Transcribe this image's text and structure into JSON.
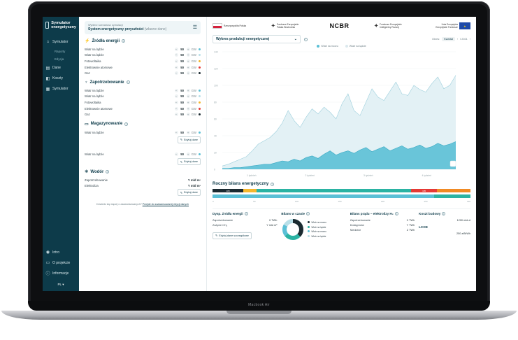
{
  "device": {
    "label": "Macbook Air"
  },
  "sidebar": {
    "logo": "Symulator energetyczny",
    "items": [
      {
        "label": "Symulator",
        "icon": "home-icon"
      },
      {
        "label": "Raporty",
        "icon": ""
      },
      {
        "label": "Edycja",
        "icon": ""
      },
      {
        "label": "Dane",
        "icon": "data-icon"
      },
      {
        "label": "Koszty",
        "icon": "wallet-icon"
      },
      {
        "label": "Symulator",
        "icon": "grid-icon"
      }
    ],
    "bottom": [
      {
        "label": "Intro",
        "icon": "play-icon"
      },
      {
        "label": "O projekcie",
        "icon": "card-icon"
      },
      {
        "label": "Informacje",
        "icon": "info-icon"
      }
    ],
    "lang": "PL ▾"
  },
  "scenario": {
    "caption": "Wybierz scenariusz symulacji",
    "value": "System energetyczny przyszłości",
    "suffix": "(własne dane)"
  },
  "sources": {
    "title": "Źródła energii",
    "rows": [
      {
        "label": "Wiatr na lądzie",
        "value": "50",
        "unit": "GW",
        "color": "#5bc0d6"
      },
      {
        "label": "Wiatr na lądzie",
        "value": "50",
        "unit": "GW",
        "color": "#b8dfe8"
      },
      {
        "label": "Fotowoltaika",
        "value": "50",
        "unit": "GW",
        "color": "#f5b82e"
      },
      {
        "label": "Elektrownie atomowe",
        "value": "50",
        "unit": "GW",
        "color": "#e53935"
      },
      {
        "label": "Gaz",
        "value": "50",
        "unit": "GW",
        "color": "#1b2b31"
      }
    ]
  },
  "demand": {
    "title": "Zapotrzebowanie",
    "rows": [
      {
        "label": "Wiatr na lądzie",
        "value": "50",
        "unit": "GW",
        "color": "#5bc0d6"
      },
      {
        "label": "Wiatr na lądzie",
        "value": "50",
        "unit": "GW",
        "color": "#b8dfe8"
      },
      {
        "label": "Fotowoltaika",
        "value": "50",
        "unit": "GW",
        "color": "#f5b82e"
      },
      {
        "label": "Elektrownie atomowe",
        "value": "50",
        "unit": "GW",
        "color": "#e53935"
      },
      {
        "label": "Gaz",
        "value": "50",
        "unit": "GW",
        "color": "#1b2b31"
      }
    ]
  },
  "storage": {
    "title": "Magazynowanie",
    "rows": [
      {
        "label": "Wiatr na lądzie",
        "value": "50",
        "unit": "GW",
        "color": "#5bc0d6",
        "edit": "Edytuj dane"
      },
      {
        "label": "Wiatr na lądzie",
        "value": "50",
        "unit": "GW",
        "color": "#5bc0d6",
        "edit": "Edytuj dane"
      }
    ]
  },
  "hydrogen": {
    "title": "Wodór",
    "rows": [
      {
        "label": "Zapotrzebowanie",
        "value": "Y mld m³"
      },
      {
        "label": "Elektroliza",
        "value": "Y mld m³"
      }
    ],
    "edit": "Edytuj dane"
  },
  "footer": {
    "text": "Dowiedz się więcej o zaawansowanych?",
    "link": "Przejdź do zaawansowanej edycji danych"
  },
  "logos": [
    "Rzeczpospolita Polska",
    "Fundusze Europejskie Polska Wschodnia",
    "NCBR",
    "Fundusze Europejskie Inteligentny Rozwój",
    "Unia Europejska Europejskie Fundusze"
  ],
  "chart": {
    "select": "Wykres produkcji energetycznej",
    "period_label": "Okres:",
    "period_value": "Kwartał",
    "period_nav": "I 2021",
    "legend": [
      "Wiatr na morzu",
      "Wiatr na lądzie"
    ],
    "x_labels": [
      "1 tydzień",
      "2 tydzień",
      "3 tydzień",
      "4 tydzień"
    ]
  },
  "chart_data": {
    "type": "area",
    "title": "Wykres produkcji energetycznej",
    "ylim": [
      0,
      140
    ],
    "y_ticks": [
      0,
      20,
      40,
      60,
      80,
      100,
      120,
      140
    ],
    "series": [
      {
        "name": "Wiatr na morzu",
        "values": [
          4,
          6,
          9,
          12,
          15,
          22,
          30,
          34,
          38,
          45,
          55,
          70,
          58,
          50,
          62,
          72,
          66,
          74,
          68,
          60,
          78,
          90,
          70,
          64,
          80,
          96,
          86,
          82,
          93,
          104,
          90,
          88,
          100,
          95,
          92,
          102,
          110,
          96,
          100,
          112
        ]
      },
      {
        "name": "Wiatr na lądzie",
        "values": [
          1,
          1,
          2,
          2,
          3,
          4,
          5,
          6,
          6,
          8,
          10,
          9,
          12,
          10,
          14,
          16,
          13,
          18,
          22,
          17,
          20,
          22,
          19,
          23,
          26,
          21,
          24,
          27,
          22,
          25,
          28,
          24,
          26,
          29,
          25,
          27,
          31,
          28,
          30,
          33
        ]
      }
    ]
  },
  "annual": {
    "title": "Roczny bilans energetyczny",
    "bars": [
      [
        {
          "v": 12,
          "c": "#1b2b31",
          "t": "105"
        },
        {
          "v": 5,
          "c": "#f5b82e",
          "t": ""
        },
        {
          "v": 60,
          "c": "#2bb3a3",
          "t": ""
        },
        {
          "v": 10,
          "c": "#e53935",
          "t": "105"
        },
        {
          "v": 13,
          "c": "#f08a24",
          "t": ""
        }
      ],
      [
        {
          "v": 86,
          "c": "#5bc0d6",
          "t": ""
        },
        {
          "v": 14,
          "c": "#2bb3a3",
          "t": ""
        }
      ]
    ],
    "scale": [
      "0",
      "50",
      "100",
      "150",
      "200",
      "250",
      "300"
    ]
  },
  "cards": {
    "gas": {
      "title": "Dysp. źródła energii",
      "rows": [
        {
          "k": "Zapotrzebowanie",
          "v": "X TWh"
        },
        {
          "k": "Zużycie CH₄",
          "v": "Y mld m³"
        }
      ],
      "edit": "Edytuj dane szczegółowe"
    },
    "balance": {
      "title": "Bilans w czasie",
      "legend": [
        {
          "label": "Wiatr na morzu",
          "color": "#1b2b31"
        },
        {
          "label": "Wiatr na lądzie",
          "color": "#2bb3a3"
        },
        {
          "label": "Wiatr na morzu",
          "color": "#5bc0d6"
        },
        {
          "label": "Wiatr na lądzie",
          "color": "#b8dfe8"
        }
      ]
    },
    "electrolysis": {
      "title": "Bilans prądu – elektrolizy H₂",
      "rows": [
        {
          "k": "Zapotrzebowanie",
          "v": "X TWh"
        },
        {
          "k": "Dostępność",
          "v": "Y TWh"
        },
        {
          "k": "Niedobór",
          "v": "Z TWh"
        }
      ]
    },
    "cost": {
      "title": "Koszt budowy",
      "value": "1200 mld zł",
      "lcoe_label": "LCOE",
      "lcoe_value": "250 zł/MWh"
    }
  }
}
